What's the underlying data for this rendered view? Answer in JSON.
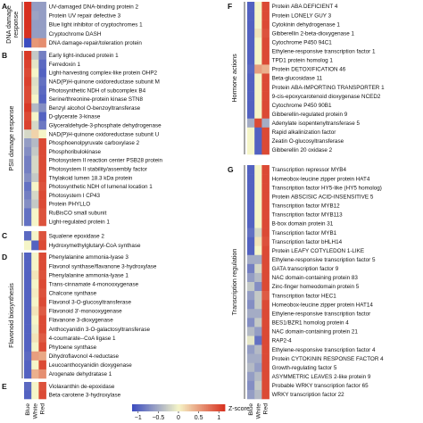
{
  "chart_data": {
    "type": "heatmap",
    "columns": [
      "Blue",
      "White",
      "Red"
    ],
    "legend": {
      "title": "Z-score",
      "ticks": [
        -1,
        -0.5,
        0,
        0.5,
        1
      ],
      "tick_labels": [
        "−1",
        "−0.5",
        "0",
        "0.5",
        "1"
      ],
      "range": [
        -1.15,
        1.15
      ]
    },
    "colors": {
      "low": "#3b4cc0",
      "mid": "#f5f5c8",
      "high": "#d7301f"
    },
    "panels": [
      {
        "id": "A",
        "label": "A",
        "group": "DNA damage response",
        "rows": [
          "UV-damaged DNA-binding protein 2",
          "Protein UV repair defective 3",
          "Blue light inhibitor of cryptochromes 1",
          "Cryptochrome DASH",
          "DNA damage-repair/toleration protein"
        ],
        "values": [
          [
            1.15,
            -0.6,
            -0.6
          ],
          [
            1.15,
            -0.55,
            -0.6
          ],
          [
            1.15,
            -0.6,
            -0.6
          ],
          [
            1.15,
            -0.6,
            -0.6
          ],
          [
            -1.15,
            0.55,
            0.6
          ]
        ]
      },
      {
        "id": "B",
        "label": "B",
        "group": "PSII damage response",
        "rows": [
          "Early light-induced protein 1",
          "Ferredoxin 1",
          "Light-harvesting complex-like protein OHP2",
          "NAD(P)H-quinone oxidoreductase subunit M",
          "Photosynthetic NDH of subcomplex B4",
          "Serine/threonine-protein kinase STN8",
          "Benzyl alcohol O-benzoyltransferase",
          "D-glycerate 3-kinase",
          "Glyceraldehyde-3-phosphate dehydrogenase",
          "NAD(P)H-quinone oxidoreductase subunit U",
          "Phosphoenolpyruvate carboxylase 2",
          "Phosphoribulokinase",
          "Photosystem II reaction center PSB28 protein",
          "Photosystem II stability/assembly factor",
          "Thylakoid lumen 18.3 kDa protein",
          "Photosynthetic NDH of lumenal location 1",
          "Photosystem I CP43",
          "Protein PHYLLO",
          "RuBisCO small subunit",
          "Light-regulated protein 1"
        ],
        "values": [
          [
            1.1,
            -0.3,
            -0.8
          ],
          [
            1.05,
            -0.1,
            -0.95
          ],
          [
            1.0,
            0.0,
            -1.0
          ],
          [
            1.05,
            -0.15,
            -0.9
          ],
          [
            1.0,
            -0.1,
            -0.95
          ],
          [
            1.0,
            0.0,
            -1.0
          ],
          [
            1.1,
            -0.4,
            -0.7
          ],
          [
            1.0,
            0.0,
            -1.0
          ],
          [
            1.05,
            -0.2,
            -0.85
          ],
          [
            -0.2,
            0.2,
            0.0
          ],
          [
            -0.6,
            -0.4,
            1.0
          ],
          [
            -0.7,
            -0.3,
            1.0
          ],
          [
            -0.8,
            -0.2,
            1.0
          ],
          [
            -0.8,
            -0.2,
            1.0
          ],
          [
            -0.7,
            -0.3,
            1.0
          ],
          [
            -0.9,
            0.0,
            0.95
          ],
          [
            -0.8,
            -0.2,
            1.0
          ],
          [
            -0.7,
            -0.3,
            1.0
          ],
          [
            -0.9,
            0.0,
            0.95
          ],
          [
            -0.9,
            0.0,
            0.95
          ]
        ]
      },
      {
        "id": "C",
        "label": "C",
        "group": "",
        "rows": [
          "Squalene epoxidase 2",
          "Hydroxymethylglutaryl-CoA synthase"
        ],
        "values": [
          [
            -0.95,
            0.0,
            0.95
          ],
          [
            0.0,
            -1.0,
            1.0
          ]
        ]
      },
      {
        "id": "D",
        "label": "D",
        "group": "Flavonoid biosynthesis",
        "rows": [
          "Phenylalanine ammonia-lyase 3",
          "Flavonol synthase/flavanone 3-hydroxylase",
          "Phenylalanine ammonia-lyase 1",
          "Trans-cinnamate 4-monooxygenase",
          "Chalcone synthase",
          "Flavonol 3-O-glucosyltransferase",
          "Flavonoid 3'-monooxygenase",
          "Flavanone 3-dioxygenase",
          "Anthocyanidin 3-O-galactosyltransferase",
          "4-coumarate--CoA ligase 1",
          "Phytoene synthase",
          "Dihydroflavonol 4-reductase",
          "Leucoanthocyanidin dioxygenase",
          "Arogenate dehydratase 1"
        ],
        "values": [
          [
            -1.0,
            0.0,
            1.0
          ],
          [
            -1.0,
            0.0,
            1.0
          ],
          [
            -1.0,
            0.1,
            0.95
          ],
          [
            -1.0,
            0.0,
            1.0
          ],
          [
            -1.0,
            0.05,
            0.95
          ],
          [
            -1.0,
            0.0,
            1.0
          ],
          [
            -1.0,
            0.1,
            0.9
          ],
          [
            -1.0,
            0.0,
            1.0
          ],
          [
            -1.0,
            -0.05,
            1.0
          ],
          [
            -1.0,
            0.1,
            0.9
          ],
          [
            -1.0,
            0.0,
            1.0
          ],
          [
            -0.95,
            0.5,
            0.45
          ],
          [
            -1.0,
            0.0,
            1.0
          ],
          [
            -1.0,
            0.4,
            0.6
          ]
        ]
      },
      {
        "id": "E",
        "label": "E",
        "group": "",
        "rows": [
          "Violaxanthin de-epoxidase",
          "Beta-carotene 3-hydroxylase"
        ],
        "values": [
          [
            -0.95,
            0.0,
            0.95
          ],
          [
            -1.0,
            0.0,
            1.0
          ]
        ]
      },
      {
        "id": "F",
        "label": "F",
        "group": "Hormone actions",
        "rows": [
          "Protein ABA DEFICIENT 4",
          "Protein LONELY GUY 3",
          "Cytokinin dehydrogenase 1",
          "Gibberellin 2-beta-dioxygenase 1",
          "Cytochrome P450 94C1",
          "Ethylene-responsive transcription factor 1",
          "TPD1 protein homolog 1",
          "Protein DETOXIFICATION 46",
          "Beta-glucosidase 11",
          "Protein ABA-IMPORTING TRANSPORTER 1",
          "9-cis-epoxycarotenoid dioxygenase NCED2",
          "Cytochrome P450 90B1",
          "Gibberellin-regulated protein 9",
          "Adenylate isopentenyltransferase 5",
          "Rapid alkalinization factor",
          "Zeatin O-glucosyltransferase",
          "Gibberellin 20 oxidase 2"
        ],
        "values": [
          [
            -1.0,
            0.0,
            1.0
          ],
          [
            -1.0,
            0.0,
            1.0
          ],
          [
            -1.0,
            0.0,
            1.0
          ],
          [
            -1.0,
            0.1,
            0.95
          ],
          [
            -1.0,
            0.0,
            1.0
          ],
          [
            -1.0,
            0.0,
            1.0
          ],
          [
            -1.0,
            0.0,
            1.0
          ],
          [
            -0.95,
            0.5,
            0.4
          ],
          [
            -1.0,
            0.0,
            1.0
          ],
          [
            -1.0,
            0.0,
            1.0
          ],
          [
            -1.0,
            0.0,
            1.0
          ],
          [
            -1.0,
            0.0,
            1.0
          ],
          [
            -1.0,
            0.0,
            1.0
          ],
          [
            -0.5,
            1.0,
            -0.5
          ],
          [
            0.0,
            -1.0,
            1.0
          ],
          [
            0.0,
            -1.0,
            1.0
          ],
          [
            0.0,
            -1.0,
            1.0
          ]
        ]
      },
      {
        "id": "G",
        "label": "G",
        "group": "Transcription regulation",
        "rows": [
          "Transcription repressor MYB4",
          "Homeobox-leucine zipper protein HAT4",
          "Transcription factor HY5-like (HY5 homolog)",
          "Protein ABSCISIC ACID-INSENSITIVE 5",
          "Transcription factor MYB12",
          "Transcription factor MYB113",
          "B-box domain protein 31",
          "Transcription factor MYB1",
          "Transcription factor bHLH14",
          "Protein LEAFY COTYLEDON 1-LIKE",
          "Ethylene-responsive transcription factor 5",
          "GATA transcription factor 9",
          "NAC domain-containing protein 83",
          "Zinc-finger homeodomain protein 5",
          "Transcription factor HEC1",
          "Homeobox-leucine zipper protein HAT14",
          "Ethylene-responsive transcription factor",
          "BES1/BZR1 homolog protein 4",
          "NAC domain-containing protein 21",
          "RAP2-4",
          "Ethylene-responsive transcription factor 4",
          "Protein CYTOKININ RESPONSE FACTOR 4",
          "Growth-regulating factor 5",
          "ASYMMETRIC LEAVES 2-like protein 9",
          "Probable WRKY transcription factor 65",
          "WRKY transcription factor 22"
        ],
        "values": [
          [
            -1.0,
            0.0,
            1.0
          ],
          [
            -1.0,
            0.0,
            1.0
          ],
          [
            -1.0,
            0.0,
            1.0
          ],
          [
            -1.0,
            0.0,
            1.0
          ],
          [
            -1.0,
            0.0,
            1.0
          ],
          [
            -1.0,
            0.0,
            1.0
          ],
          [
            -1.0,
            0.0,
            1.0
          ],
          [
            -0.9,
            -0.2,
            1.0
          ],
          [
            -1.0,
            0.1,
            0.95
          ],
          [
            -1.0,
            0.0,
            1.0
          ],
          [
            -0.5,
            -0.5,
            1.0
          ],
          [
            -0.8,
            -0.2,
            1.0
          ],
          [
            -0.6,
            -0.4,
            1.0
          ],
          [
            -0.3,
            -0.7,
            1.0
          ],
          [
            -0.6,
            -0.3,
            0.9
          ],
          [
            -0.7,
            -0.3,
            1.0
          ],
          [
            -0.5,
            -0.5,
            1.0
          ],
          [
            -0.7,
            -0.3,
            1.0
          ],
          [
            -0.4,
            -0.6,
            1.0
          ],
          [
            -0.1,
            -0.9,
            1.0
          ],
          [
            -0.6,
            -0.4,
            1.0
          ],
          [
            -0.5,
            -0.5,
            1.0
          ],
          [
            -0.4,
            -0.6,
            1.0
          ],
          [
            -0.6,
            -0.4,
            1.0
          ],
          [
            -0.7,
            -0.3,
            1.0
          ],
          [
            -0.6,
            -0.4,
            1.0
          ]
        ]
      }
    ]
  }
}
